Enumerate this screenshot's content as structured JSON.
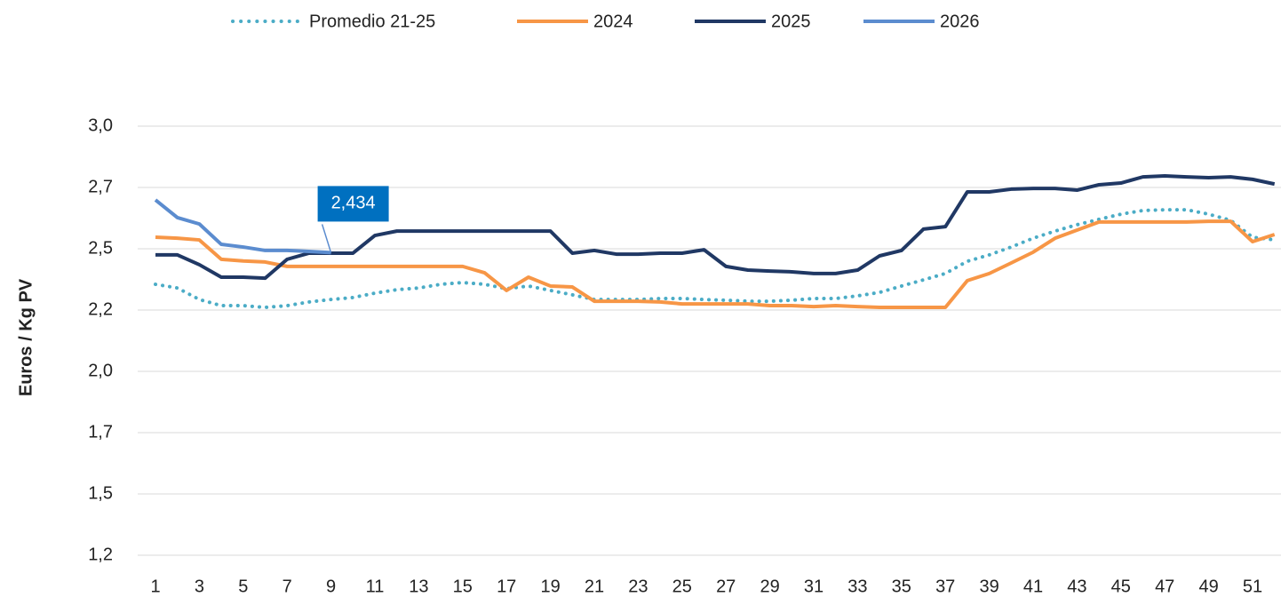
{
  "chart_data": {
    "type": "line",
    "y_label": "Euros / Kg PV",
    "categories": [
      "1",
      null,
      "3",
      null,
      "5",
      null,
      "7",
      null,
      "9",
      null,
      "11",
      null,
      "13",
      null,
      "15",
      null,
      "17",
      null,
      "19",
      null,
      "21",
      null,
      "23",
      null,
      "25",
      null,
      "27",
      null,
      "29",
      null,
      "31",
      null,
      "33",
      null,
      "35",
      null,
      "37",
      null,
      "39",
      null,
      "41",
      null,
      "43",
      null,
      "45",
      null,
      "47",
      null,
      "49",
      null,
      "51",
      null
    ],
    "ylim": [
      1.2,
      2.95
    ],
    "yticks": [
      {
        "value": 1.2,
        "label": "1,2"
      },
      {
        "value": 1.45,
        "label": "1,5"
      },
      {
        "value": 1.7,
        "label": "1,7"
      },
      {
        "value": 1.95,
        "label": "2,0"
      },
      {
        "value": 2.2,
        "label": "2,2"
      },
      {
        "value": 2.45,
        "label": "2,5"
      },
      {
        "value": 2.7,
        "label": "2,7"
      },
      {
        "value": 2.95,
        "label": "3,0"
      }
    ],
    "grid": true,
    "legend": "top",
    "series": [
      {
        "name": "Promedio 21-25",
        "color": "#4bacc6",
        "style": "dotted",
        "values": [
          2.305,
          2.29,
          2.243,
          2.218,
          2.218,
          2.211,
          2.218,
          2.233,
          2.243,
          2.251,
          2.269,
          2.283,
          2.29,
          2.305,
          2.312,
          2.305,
          2.287,
          2.298,
          2.28,
          2.262,
          2.243,
          2.243,
          2.243,
          2.247,
          2.247,
          2.243,
          2.24,
          2.236,
          2.236,
          2.24,
          2.247,
          2.247,
          2.258,
          2.272,
          2.298,
          2.323,
          2.349,
          2.399,
          2.425,
          2.457,
          2.493,
          2.522,
          2.548,
          2.57,
          2.591,
          2.606,
          2.609,
          2.609,
          2.591,
          2.566,
          2.497,
          2.486
        ]
      },
      {
        "name": "2024",
        "color": "#f79646",
        "style": "solid",
        "values": [
          2.497,
          2.493,
          2.486,
          2.407,
          2.4,
          2.396,
          2.378,
          2.378,
          2.378,
          2.378,
          2.378,
          2.378,
          2.378,
          2.378,
          2.378,
          2.352,
          2.28,
          2.334,
          2.298,
          2.294,
          2.236,
          2.236,
          2.236,
          2.233,
          2.225,
          2.225,
          2.225,
          2.225,
          2.218,
          2.218,
          2.214,
          2.218,
          2.214,
          2.211,
          2.211,
          2.211,
          2.211,
          2.32,
          2.349,
          2.392,
          2.436,
          2.493,
          2.526,
          2.559,
          2.559,
          2.559,
          2.559,
          2.559,
          2.562,
          2.562,
          2.479,
          2.508
        ]
      },
      {
        "name": "2025",
        "color": "#203864",
        "style": "solid",
        "values": [
          2.425,
          2.425,
          2.385,
          2.334,
          2.334,
          2.33,
          2.407,
          2.432,
          2.432,
          2.432,
          2.504,
          2.522,
          2.522,
          2.522,
          2.522,
          2.522,
          2.522,
          2.522,
          2.522,
          2.432,
          2.443,
          2.428,
          2.428,
          2.432,
          2.432,
          2.446,
          2.378,
          2.363,
          2.359,
          2.356,
          2.349,
          2.349,
          2.363,
          2.421,
          2.443,
          2.53,
          2.54,
          2.682,
          2.682,
          2.693,
          2.696,
          2.696,
          2.689,
          2.711,
          2.718,
          2.743,
          2.747,
          2.743,
          2.74,
          2.743,
          2.733,
          2.714
        ]
      },
      {
        "name": "2026",
        "color": "#5b8ccf",
        "style": "solid",
        "values": [
          2.649,
          2.577,
          2.551,
          2.468,
          2.457,
          2.443,
          2.443,
          2.439,
          2.434,
          null,
          null,
          null,
          null,
          null,
          null,
          null,
          null,
          null,
          null,
          null,
          null,
          null,
          null,
          null,
          null,
          null,
          null,
          null,
          null,
          null,
          null,
          null,
          null,
          null,
          null,
          null,
          null,
          null,
          null,
          null,
          null,
          null,
          null,
          null,
          null,
          null,
          null,
          null,
          null,
          null,
          null,
          null
        ],
        "value_labels": [
          null,
          null,
          null,
          null,
          null,
          null,
          null,
          null,
          "2,434",
          null,
          null,
          null,
          null,
          null,
          null,
          null,
          null,
          null,
          null,
          null,
          null,
          null,
          null,
          null,
          null,
          null,
          null,
          null,
          null,
          null,
          null,
          null,
          null,
          null,
          null,
          null,
          null,
          null,
          null,
          null,
          null,
          null,
          null,
          null,
          null,
          null,
          null,
          null,
          null,
          null,
          null,
          null
        ],
        "label_color": "#0070c0"
      }
    ]
  }
}
